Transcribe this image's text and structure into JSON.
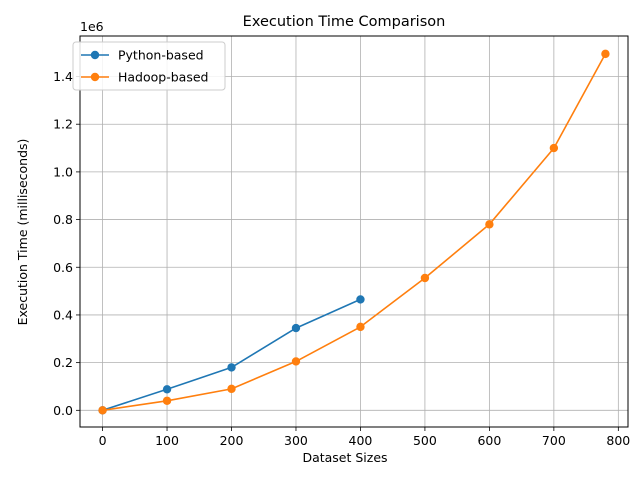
{
  "chart_data": {
    "type": "line",
    "title": "Execution Time Comparison",
    "xlabel": "Dataset Sizes",
    "ylabel": "Execution Time (milliseconds)",
    "y_offset_label": "1e6",
    "xlim": [
      -35,
      815
    ],
    "ylim": [
      -70000,
      1570000
    ],
    "x_ticks": [
      0,
      100,
      200,
      300,
      400,
      500,
      600,
      700,
      800
    ],
    "x_tick_labels": [
      "0",
      "100",
      "200",
      "300",
      "400",
      "500",
      "600",
      "700",
      "800"
    ],
    "y_ticks": [
      0,
      200000,
      400000,
      600000,
      800000,
      1000000,
      1200000,
      1400000
    ],
    "y_tick_labels": [
      "0.0",
      "0.2",
      "0.4",
      "0.6",
      "0.8",
      "1.0",
      "1.2",
      "1.4"
    ],
    "grid": true,
    "legend_position": "top-left",
    "series": [
      {
        "name": "Python-based",
        "color": "#1f77b4",
        "marker": "circle",
        "x": [
          0,
          100,
          200,
          300,
          400
        ],
        "y": [
          0,
          88000,
          180000,
          345000,
          465000
        ]
      },
      {
        "name": "Hadoop-based",
        "color": "#ff7f0e",
        "marker": "circle",
        "x": [
          0,
          100,
          200,
          300,
          400,
          500,
          600,
          700,
          780
        ],
        "y": [
          0,
          40000,
          90000,
          205000,
          350000,
          555000,
          780000,
          1100000,
          1495000
        ]
      }
    ]
  }
}
